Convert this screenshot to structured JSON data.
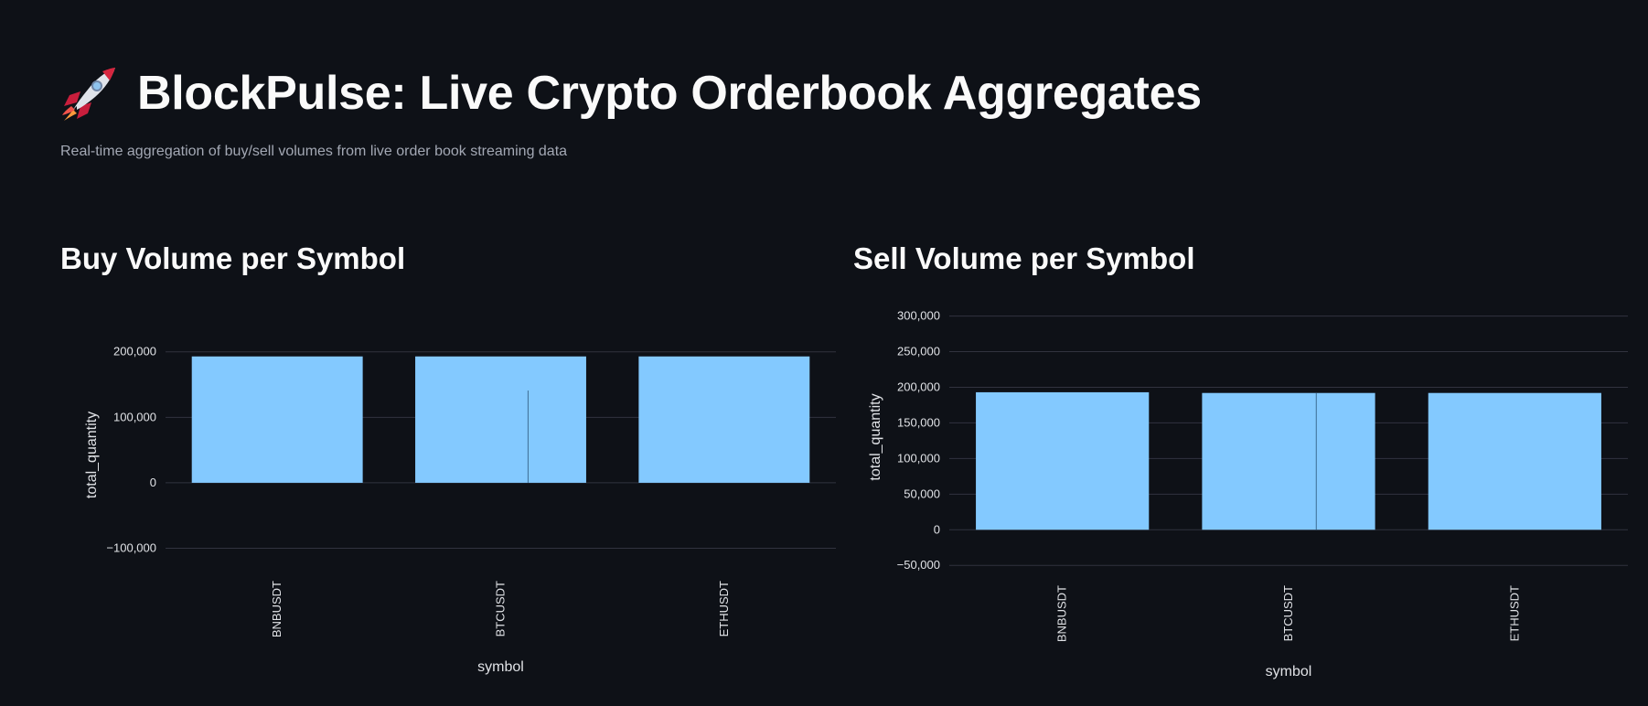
{
  "app": {
    "title": "BlockPulse: Live Crypto Orderbook Aggregates",
    "subtitle": "Real-time aggregation of buy/sell volumes from live order book streaming data",
    "icon": "rocket-icon"
  },
  "colors": {
    "background": "#0e1117",
    "bar": "#83c9ff",
    "grid": "#31333f",
    "text": "#fafafa"
  },
  "buy_chart": {
    "title": "Buy Volume per Symbol"
  },
  "sell_chart": {
    "title": "Sell Volume per Symbol"
  },
  "chart_data": [
    {
      "type": "bar",
      "title": "Buy Volume per Symbol",
      "categories": [
        "BNBUSDT",
        "BTCUSDT",
        "ETHUSDT"
      ],
      "values": [
        193000,
        193000,
        193000
      ],
      "xlabel": "symbol",
      "ylabel": "total_quantity",
      "ylim": [
        -130000,
        215000
      ],
      "yticks": [
        -100000,
        0,
        100000,
        200000
      ],
      "ytick_labels": [
        "−100,000",
        "0",
        "100,000",
        "200,000"
      ],
      "grid": true,
      "legend": "none"
    },
    {
      "type": "bar",
      "title": "Sell Volume per Symbol",
      "categories": [
        "BNBUSDT",
        "BTCUSDT",
        "ETHUSDT"
      ],
      "values": [
        193000,
        192000,
        192000
      ],
      "xlabel": "symbol",
      "ylabel": "total_quantity",
      "ylim": [
        -60000,
        320000
      ],
      "yticks": [
        -50000,
        0,
        50000,
        100000,
        150000,
        200000,
        250000,
        300000
      ],
      "ytick_labels": [
        "−50,000",
        "0",
        "50,000",
        "100,000",
        "150,000",
        "200,000",
        "250,000",
        "300,000"
      ],
      "grid": true,
      "legend": "none"
    }
  ]
}
